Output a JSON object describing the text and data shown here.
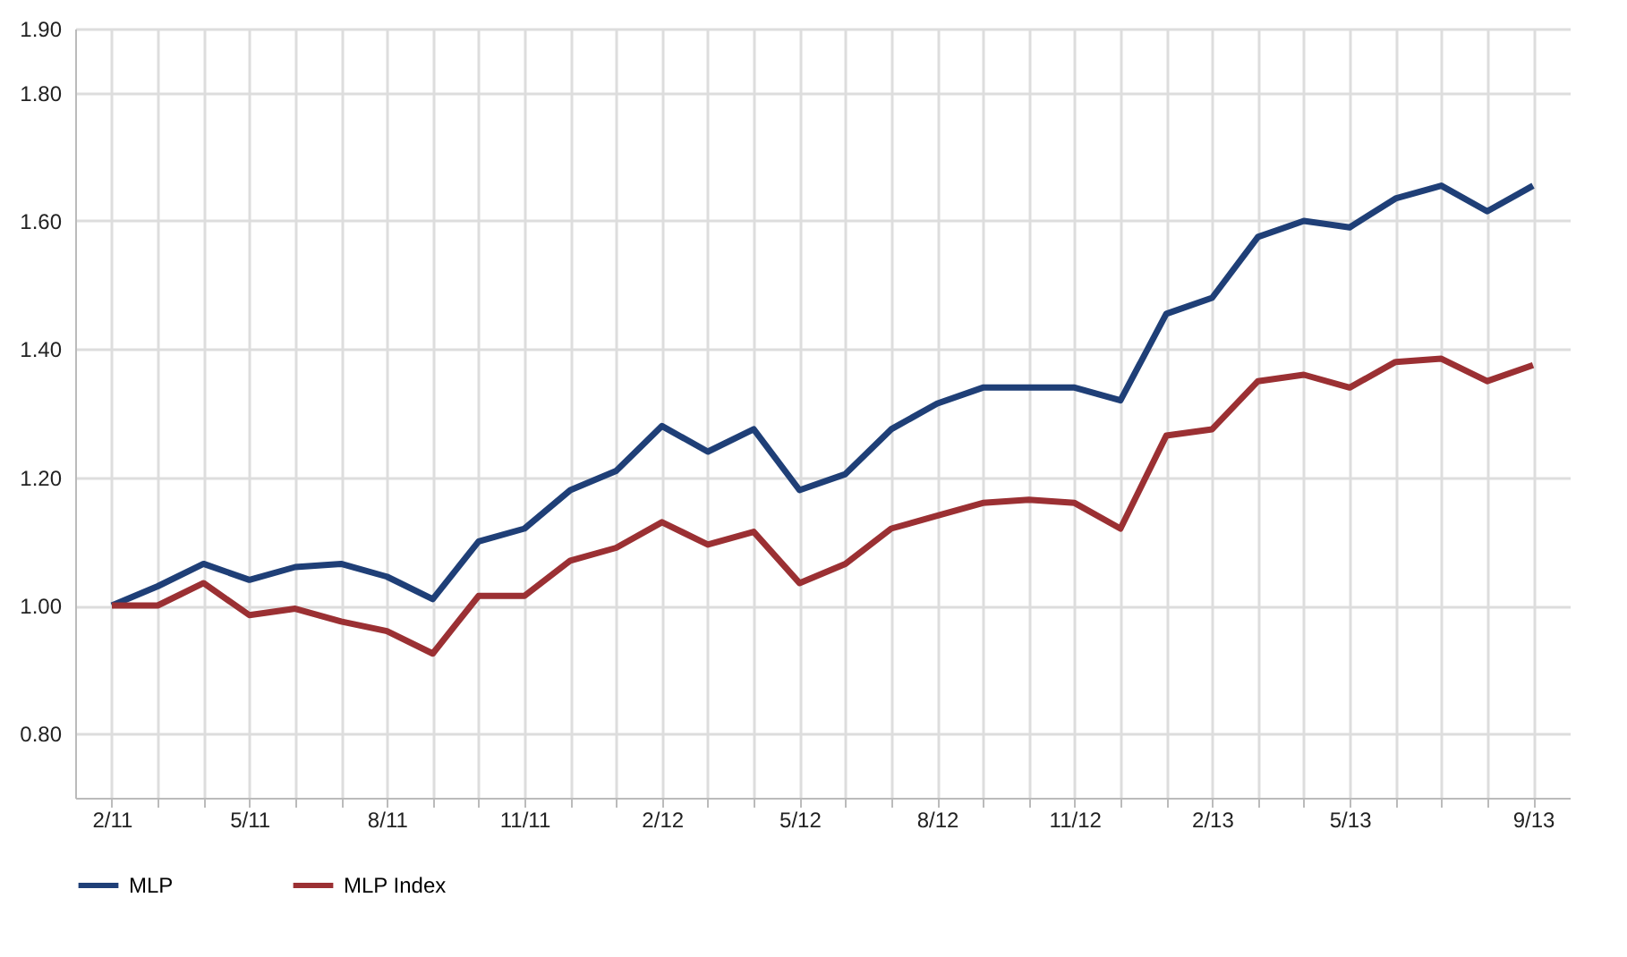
{
  "chart_data": {
    "type": "line",
    "categories": [
      "2/11",
      null,
      null,
      "5/11",
      null,
      null,
      "8/11",
      null,
      null,
      "11/11",
      null,
      null,
      "2/12",
      null,
      null,
      "5/12",
      null,
      null,
      "8/12",
      null,
      null,
      "11/12",
      null,
      null,
      "2/13",
      null,
      null,
      "5/13",
      null,
      null,
      null,
      "9/13"
    ],
    "series": [
      {
        "name": "MLP",
        "color": "#1f3f77",
        "values": [
          1.0,
          1.03,
          1.065,
          1.04,
          1.06,
          1.065,
          1.045,
          1.01,
          1.1,
          1.12,
          1.18,
          1.21,
          1.28,
          1.24,
          1.275,
          1.18,
          1.205,
          1.275,
          1.315,
          1.34,
          1.34,
          1.34,
          1.32,
          1.455,
          1.48,
          1.575,
          1.6,
          1.59,
          1.635,
          1.655,
          1.615,
          1.655
        ]
      },
      {
        "name": "MLP Index",
        "color": "#9b3033",
        "values": [
          1.0,
          1.0,
          1.035,
          0.985,
          0.995,
          0.975,
          0.96,
          0.925,
          1.015,
          1.015,
          1.07,
          1.09,
          1.13,
          1.095,
          1.115,
          1.035,
          1.065,
          1.12,
          1.14,
          1.16,
          1.165,
          1.16,
          1.12,
          1.265,
          1.275,
          1.35,
          1.36,
          1.34,
          1.38,
          1.385,
          1.35,
          1.375
        ]
      }
    ],
    "ylim": [
      0.7,
      1.9
    ],
    "yticks": [
      {
        "value": 0.8,
        "label": "0.80"
      },
      {
        "value": 1.0,
        "label": "1.00"
      },
      {
        "value": 1.2,
        "label": "1.20"
      },
      {
        "value": 1.4,
        "label": "1.40"
      },
      {
        "value": 1.6,
        "label": "1.60"
      },
      {
        "value": 1.8,
        "label": "1.80"
      },
      {
        "value": 1.9,
        "label": "1.90"
      }
    ],
    "grid": true,
    "legend": "bottom",
    "line_style": "solid"
  }
}
